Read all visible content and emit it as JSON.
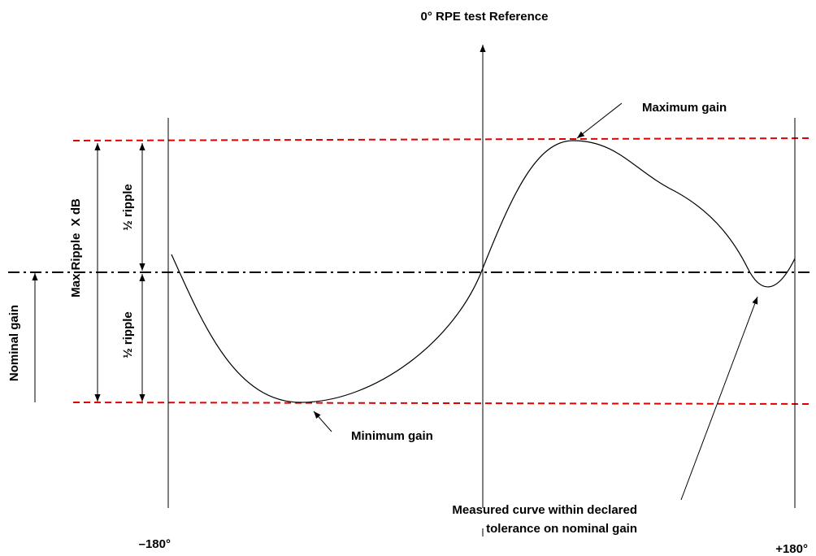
{
  "labels": {
    "reference": "0° RPE test Reference",
    "max_gain": "Maximum gain",
    "min_gain": "Minimum gain",
    "max_ripple": "Max Ripple  X dB",
    "half_ripple_upper": "½ ripple",
    "half_ripple_lower": "½ ripple",
    "nominal_gain": "Nominal gain",
    "measured_line1": "Measured curve within declared",
    "measured_line2": "tolerance on nominal gain",
    "left_angle": "–180°",
    "right_angle": "+180°"
  }
}
